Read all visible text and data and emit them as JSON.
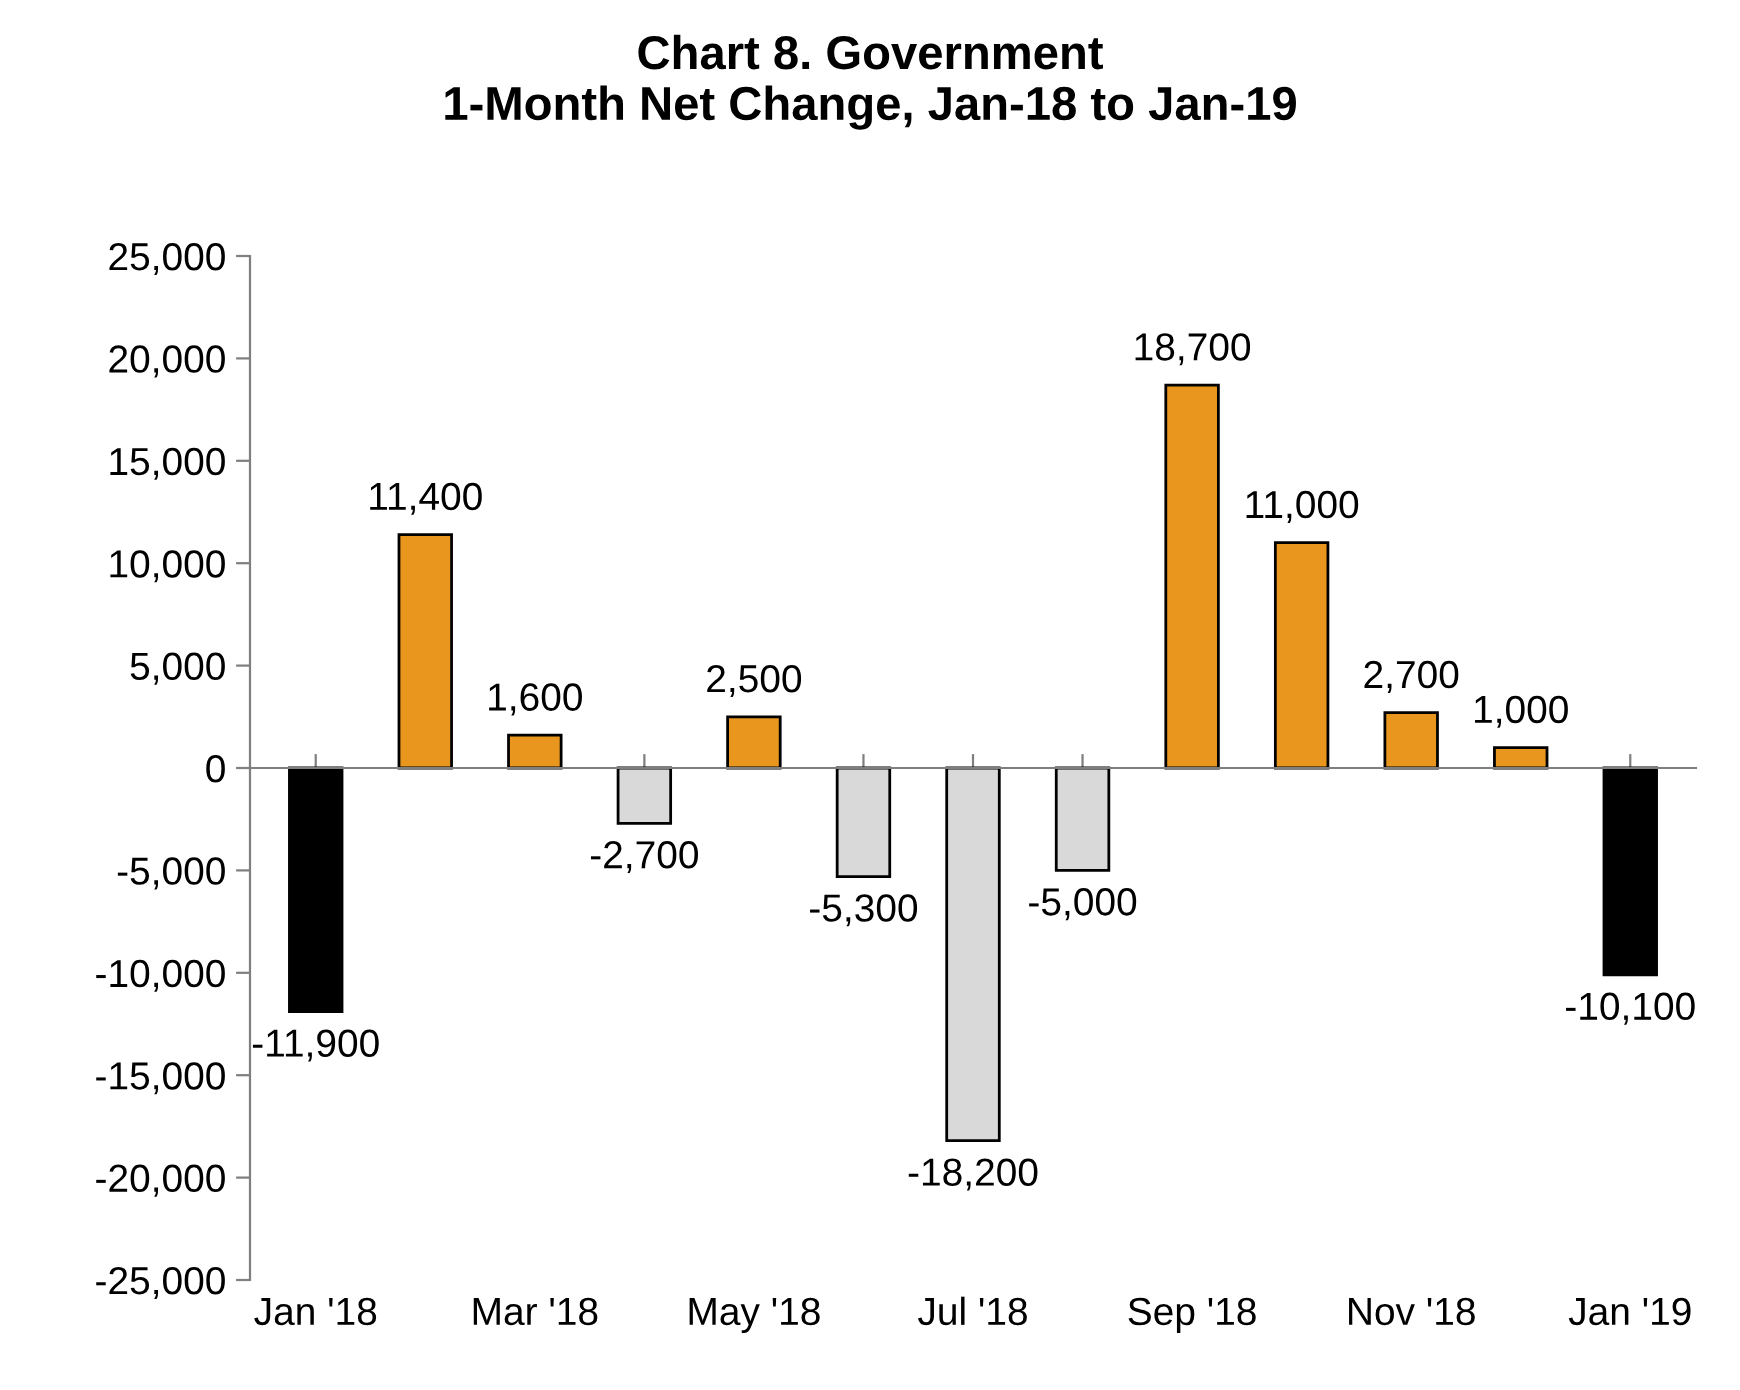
{
  "chart_data": {
    "type": "bar",
    "title": "Chart 8. Government\n1-Month Net Change, Jan-18 to Jan-19",
    "categories": [
      "Jan '18",
      null,
      "Mar '18",
      null,
      "May '18",
      null,
      "Jul '18",
      null,
      "Sep '18",
      null,
      "Nov '18",
      null,
      "Jan '19"
    ],
    "values": [
      -11900,
      11400,
      1600,
      -2700,
      2500,
      -5300,
      -18200,
      -5000,
      18700,
      11000,
      2700,
      1000,
      -10100
    ],
    "colors": [
      "#000000",
      "#e8961e",
      "#e8961e",
      "#d9d9d9",
      "#e8961e",
      "#d9d9d9",
      "#d9d9d9",
      "#d9d9d9",
      "#e8961e",
      "#e8961e",
      "#e8961e",
      "#e8961e",
      "#000000"
    ],
    "value_labels": [
      "-11,900",
      "11,400",
      "1,600",
      "-2,700",
      "2,500",
      "-5,300",
      "-18,200",
      "-5,000",
      "18,700",
      "11,000",
      "2,700",
      "1,000",
      "-10,100"
    ],
    "ylim": [
      -25000,
      25000
    ],
    "yticks": [
      {
        "value": -25000,
        "label": "-25,000"
      },
      {
        "value": -20000,
        "label": "-20,000"
      },
      {
        "value": -15000,
        "label": "-15,000"
      },
      {
        "value": -10000,
        "label": "-10,000"
      },
      {
        "value": -5000,
        "label": "-5,000"
      },
      0,
      {
        "value": 5000,
        "label": "5,000"
      },
      {
        "value": 10000,
        "label": "10,000"
      },
      {
        "value": 15000,
        "label": "15,000"
      },
      {
        "value": 20000,
        "label": "20,000"
      },
      {
        "value": 25000,
        "label": "25,000"
      }
    ],
    "legend": false
  }
}
